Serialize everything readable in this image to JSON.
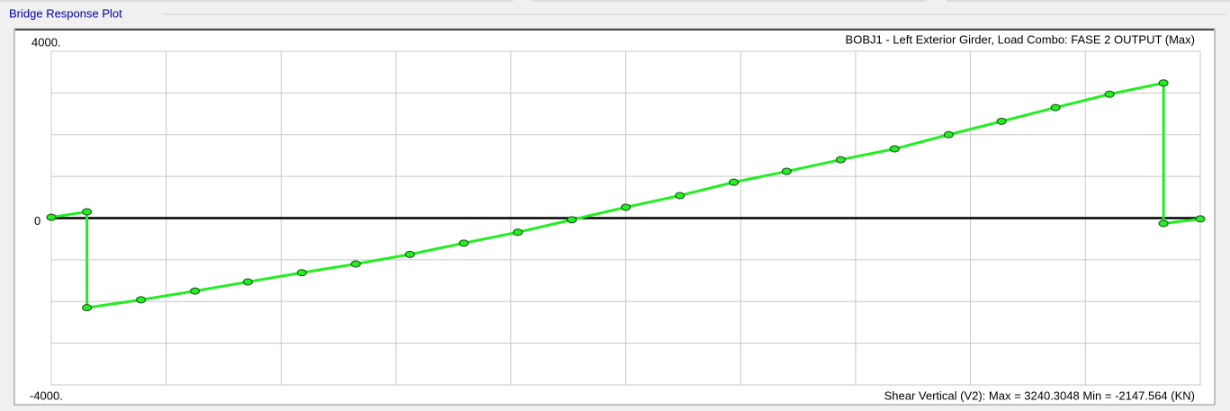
{
  "group_title": "Bridge Response Plot",
  "chart_data": {
    "type": "line",
    "title": "BOBJ1 - Left Exterior Girder,  Load Combo: FASE 2 OUTPUT (Max)",
    "annotation": "Shear Vertical  (V2):  Max = 3240.3048    Min = -2147.564  (KN)",
    "x": [
      0,
      0.31,
      0.31,
      0.78,
      1.25,
      1.71,
      2.18,
      2.65,
      3.12,
      3.59,
      4.06,
      4.53,
      5.0,
      5.47,
      5.94,
      6.4,
      6.87,
      7.34,
      7.81,
      8.27,
      8.74,
      9.21,
      9.68,
      9.68,
      10
    ],
    "series": [
      {
        "color": "#22ee22",
        "values": [
          20,
          150,
          -2147.564,
          -1960,
          -1750,
          -1530,
          -1310,
          -1100,
          -870,
          -600,
          -340,
          -40,
          260,
          540,
          860,
          1120,
          1400,
          1660,
          2000,
          2320,
          2650,
          2970,
          3240.3048,
          -130,
          -20
        ]
      }
    ],
    "xlim": [
      0,
      10
    ],
    "xticks": [
      0,
      1,
      2,
      3,
      4,
      5,
      6,
      7,
      8,
      9,
      10
    ],
    "ylim": [
      -4000,
      4000
    ],
    "yticks": [
      {
        "value": 4000,
        "label": "4000."
      },
      {
        "value": 0,
        "label": "0"
      },
      {
        "value": -4000,
        "label": "-4000."
      }
    ],
    "ygrid": [
      -3000,
      -2000,
      -1000,
      1000,
      2000,
      3000
    ],
    "grid": true
  }
}
